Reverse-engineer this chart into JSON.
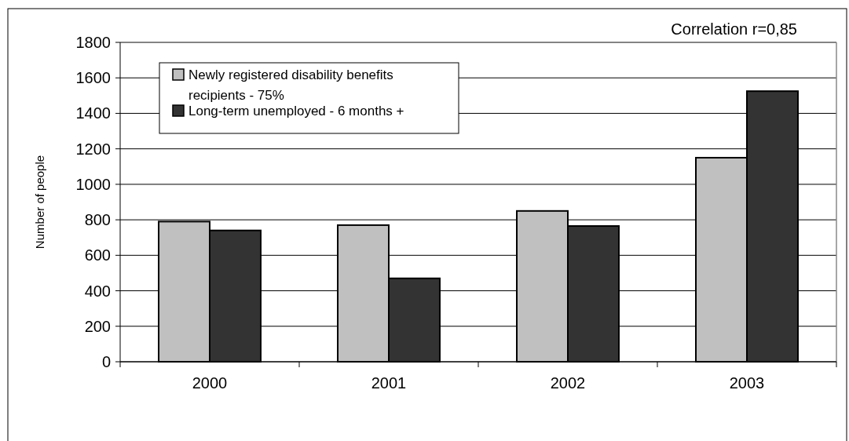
{
  "chart_data": {
    "type": "bar",
    "ylabel": "Number of people",
    "annotations": [
      "Correlation r=0,85"
    ],
    "categories": [
      "2000",
      "2001",
      "2002",
      "2003"
    ],
    "series": [
      {
        "name": "Newly registered disability benefits recipients - 75%",
        "color": "#c0c0c0",
        "values": [
          790,
          770,
          850,
          1150
        ]
      },
      {
        "name": "Long-term unemployed - 6 months +",
        "color": "#333333",
        "values": [
          740,
          470,
          765,
          1525
        ]
      }
    ],
    "ylim": [
      0,
      1800
    ],
    "yticks": [
      0,
      200,
      400,
      600,
      800,
      1000,
      1200,
      1400,
      1600,
      1800
    ],
    "grid": "y",
    "legend": "top left"
  }
}
